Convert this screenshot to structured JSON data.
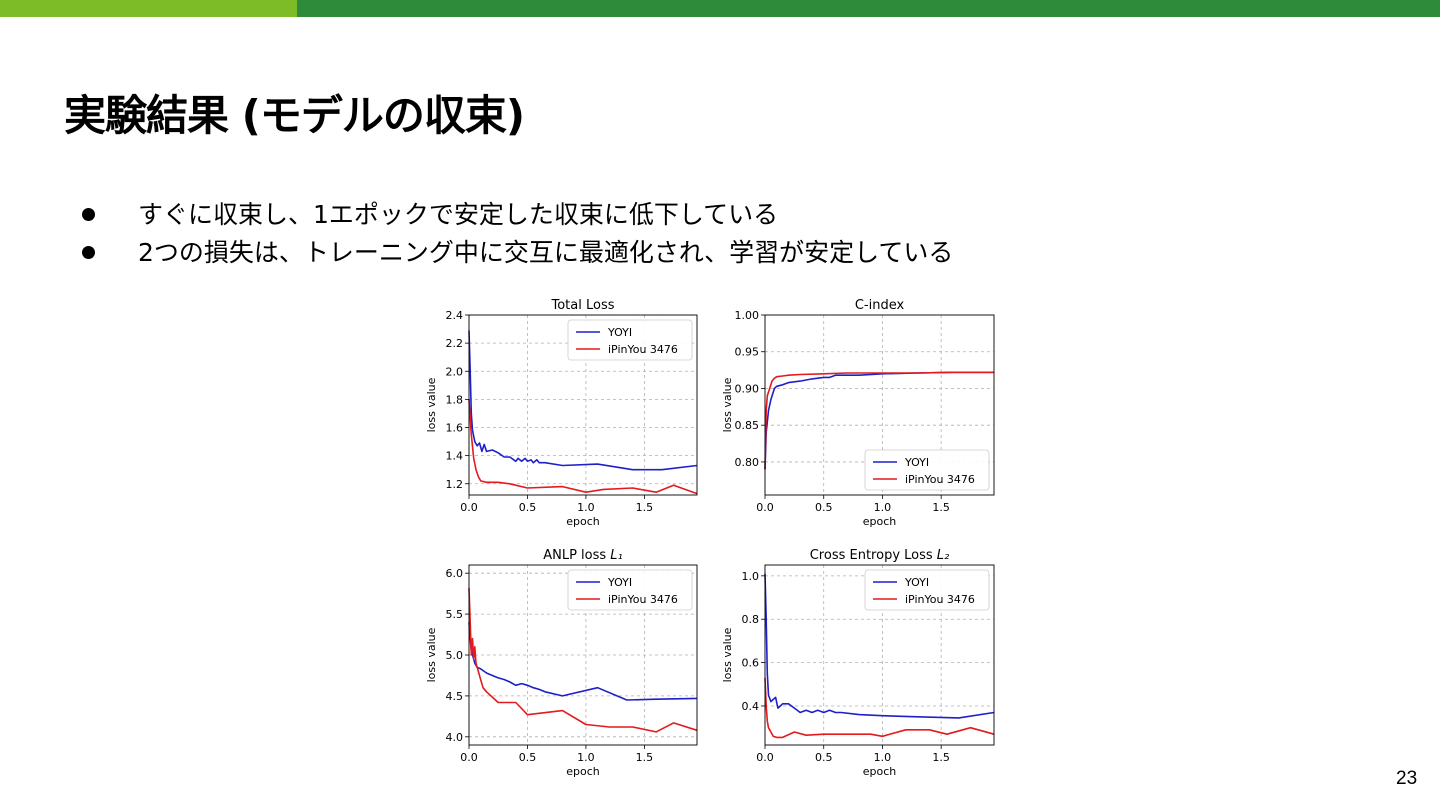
{
  "slide": {
    "title": "実験結果 (モデルの収束)",
    "bullets": [
      "すぐに収束し、1エポックで安定した収束に低下している",
      "2つの損失は、トレーニング中に交互に最適化され、学習が安定している"
    ],
    "page_number": "23"
  },
  "colors": {
    "accent_light": "#7dbc27",
    "accent_dark": "#2e8b3a",
    "yoyi": "#1f1fcc",
    "ipinyou": "#e41a1c"
  },
  "chart_data": [
    {
      "type": "line",
      "title": "Total Loss",
      "title_suffix": "",
      "xlabel": "epoch",
      "ylabel": "loss value",
      "xlim": [
        0,
        1.95
      ],
      "ylim": [
        1.12,
        2.4
      ],
      "xticks": [
        0.0,
        0.5,
        1.0,
        1.5
      ],
      "xtick_labels": [
        "0.0",
        "0.5",
        "1.0",
        "1.5"
      ],
      "yticks": [
        1.2,
        1.4,
        1.6,
        1.8,
        2.0,
        2.2,
        2.4
      ],
      "ytick_labels": [
        "1.2",
        "1.4",
        "1.6",
        "1.8",
        "2.0",
        "2.2",
        "2.4"
      ],
      "grid": true,
      "legend_position": "top-right",
      "series": [
        {
          "name": "YOYI",
          "color": "#1f1fcc",
          "x": [
            0,
            0.01,
            0.02,
            0.03,
            0.05,
            0.07,
            0.09,
            0.11,
            0.13,
            0.15,
            0.2,
            0.25,
            0.3,
            0.35,
            0.4,
            0.42,
            0.45,
            0.48,
            0.5,
            0.53,
            0.55,
            0.58,
            0.6,
            0.65,
            0.8,
            1.1,
            1.4,
            1.65,
            1.95
          ],
          "y": [
            2.29,
            2.0,
            1.7,
            1.58,
            1.5,
            1.47,
            1.49,
            1.43,
            1.48,
            1.43,
            1.44,
            1.42,
            1.39,
            1.39,
            1.36,
            1.38,
            1.36,
            1.38,
            1.36,
            1.37,
            1.35,
            1.37,
            1.35,
            1.35,
            1.33,
            1.34,
            1.3,
            1.3,
            1.33
          ]
        },
        {
          "name": "iPinYou 3476",
          "color": "#e41a1c",
          "x": [
            0,
            0.02,
            0.04,
            0.06,
            0.08,
            0.1,
            0.15,
            0.25,
            0.35,
            0.5,
            0.8,
            1.0,
            1.15,
            1.4,
            1.6,
            1.75,
            1.95
          ],
          "y": [
            1.8,
            1.55,
            1.38,
            1.3,
            1.25,
            1.22,
            1.21,
            1.21,
            1.2,
            1.17,
            1.18,
            1.14,
            1.16,
            1.17,
            1.14,
            1.19,
            1.13
          ]
        }
      ]
    },
    {
      "type": "line",
      "title": "C-index",
      "title_suffix": "",
      "xlabel": "epoch",
      "ylabel": "loss value",
      "xlim": [
        0,
        1.95
      ],
      "ylim": [
        0.755,
        1.0
      ],
      "xticks": [
        0.0,
        0.5,
        1.0,
        1.5
      ],
      "xtick_labels": [
        "0.0",
        "0.5",
        "1.0",
        "1.5"
      ],
      "yticks": [
        0.8,
        0.85,
        0.9,
        0.95,
        1.0
      ],
      "ytick_labels": [
        "0.80",
        "0.85",
        "0.90",
        "0.95",
        "1.00"
      ],
      "grid": true,
      "legend_position": "bottom-right",
      "series": [
        {
          "name": "YOYI",
          "color": "#1f1fcc",
          "x": [
            0,
            0.01,
            0.03,
            0.05,
            0.08,
            0.1,
            0.15,
            0.2,
            0.3,
            0.4,
            0.5,
            0.55,
            0.6,
            0.8,
            1.0,
            1.3,
            1.6,
            1.95
          ],
          "y": [
            0.79,
            0.84,
            0.87,
            0.885,
            0.9,
            0.903,
            0.905,
            0.908,
            0.91,
            0.913,
            0.915,
            0.915,
            0.918,
            0.918,
            0.92,
            0.921,
            0.922,
            0.922
          ]
        },
        {
          "name": "iPinYou 3476",
          "color": "#e41a1c",
          "x": [
            0,
            0.01,
            0.02,
            0.04,
            0.06,
            0.08,
            0.1,
            0.15,
            0.2,
            0.3,
            0.5,
            0.7,
            1.0,
            1.3,
            1.6,
            1.95
          ],
          "y": [
            0.79,
            0.87,
            0.89,
            0.9,
            0.91,
            0.914,
            0.916,
            0.917,
            0.918,
            0.919,
            0.92,
            0.921,
            0.921,
            0.921,
            0.922,
            0.922
          ]
        }
      ]
    },
    {
      "type": "line",
      "title": "ANLP loss ",
      "title_suffix": "L₁",
      "xlabel": "epoch",
      "ylabel": "loss value",
      "xlim": [
        0,
        1.95
      ],
      "ylim": [
        3.9,
        6.1
      ],
      "xticks": [
        0.0,
        0.5,
        1.0,
        1.5
      ],
      "xtick_labels": [
        "0.0",
        "0.5",
        "1.0",
        "1.5"
      ],
      "yticks": [
        4.0,
        4.5,
        5.0,
        5.5,
        6.0
      ],
      "ytick_labels": [
        "4.0",
        "4.5",
        "5.0",
        "5.5",
        "6.0"
      ],
      "grid": true,
      "legend_position": "top-right",
      "series": [
        {
          "name": "YOYI",
          "color": "#1f1fcc",
          "x": [
            0,
            0.01,
            0.02,
            0.04,
            0.05,
            0.07,
            0.1,
            0.15,
            0.2,
            0.25,
            0.3,
            0.35,
            0.4,
            0.45,
            0.5,
            0.55,
            0.6,
            0.65,
            0.8,
            1.1,
            1.35,
            1.6,
            1.95
          ],
          "y": [
            5.4,
            5.2,
            5.05,
            4.95,
            4.9,
            4.85,
            4.83,
            4.78,
            4.75,
            4.72,
            4.7,
            4.67,
            4.63,
            4.65,
            4.63,
            4.6,
            4.58,
            4.55,
            4.5,
            4.6,
            4.45,
            4.46,
            4.47
          ]
        },
        {
          "name": "iPinYou 3476",
          "color": "#e41a1c",
          "x": [
            0,
            0.01,
            0.02,
            0.03,
            0.04,
            0.05,
            0.06,
            0.07,
            0.09,
            0.12,
            0.15,
            0.25,
            0.4,
            0.5,
            0.8,
            1.0,
            1.2,
            1.4,
            1.6,
            1.75,
            1.95
          ],
          "y": [
            5.82,
            5.4,
            5.0,
            5.2,
            4.95,
            5.1,
            4.9,
            4.85,
            4.75,
            4.6,
            4.55,
            4.42,
            4.42,
            4.27,
            4.32,
            4.15,
            4.12,
            4.12,
            4.06,
            4.17,
            4.08
          ]
        }
      ]
    },
    {
      "type": "line",
      "title": "Cross Entropy Loss ",
      "title_suffix": "L₂",
      "xlabel": "epoch",
      "ylabel": "loss value",
      "xlim": [
        0,
        1.95
      ],
      "ylim": [
        0.22,
        1.05
      ],
      "xticks": [
        0.0,
        0.5,
        1.0,
        1.5
      ],
      "xtick_labels": [
        "0.0",
        "0.5",
        "1.0",
        "1.5"
      ],
      "yticks": [
        0.4,
        0.6,
        0.8,
        1.0
      ],
      "ytick_labels": [
        "0.4",
        "0.6",
        "0.8",
        "1.0"
      ],
      "grid": true,
      "legend_position": "top-right",
      "series": [
        {
          "name": "YOYI",
          "color": "#1f1fcc",
          "x": [
            0,
            0.01,
            0.02,
            0.03,
            0.05,
            0.07,
            0.09,
            0.11,
            0.13,
            0.15,
            0.2,
            0.25,
            0.3,
            0.35,
            0.4,
            0.45,
            0.5,
            0.55,
            0.6,
            0.65,
            0.8,
            1.0,
            1.3,
            1.65,
            1.95
          ],
          "y": [
            1.01,
            0.8,
            0.55,
            0.45,
            0.42,
            0.43,
            0.44,
            0.39,
            0.4,
            0.41,
            0.41,
            0.39,
            0.37,
            0.38,
            0.37,
            0.38,
            0.37,
            0.38,
            0.37,
            0.37,
            0.36,
            0.355,
            0.35,
            0.345,
            0.37
          ]
        },
        {
          "name": "iPinYou 3476",
          "color": "#e41a1c",
          "x": [
            0,
            0.01,
            0.02,
            0.03,
            0.05,
            0.07,
            0.1,
            0.15,
            0.25,
            0.35,
            0.5,
            0.7,
            0.9,
            1.0,
            1.2,
            1.4,
            1.55,
            1.75,
            1.95
          ],
          "y": [
            0.53,
            0.4,
            0.33,
            0.3,
            0.28,
            0.26,
            0.255,
            0.255,
            0.28,
            0.265,
            0.27,
            0.27,
            0.27,
            0.26,
            0.29,
            0.29,
            0.27,
            0.3,
            0.27
          ]
        }
      ]
    }
  ]
}
